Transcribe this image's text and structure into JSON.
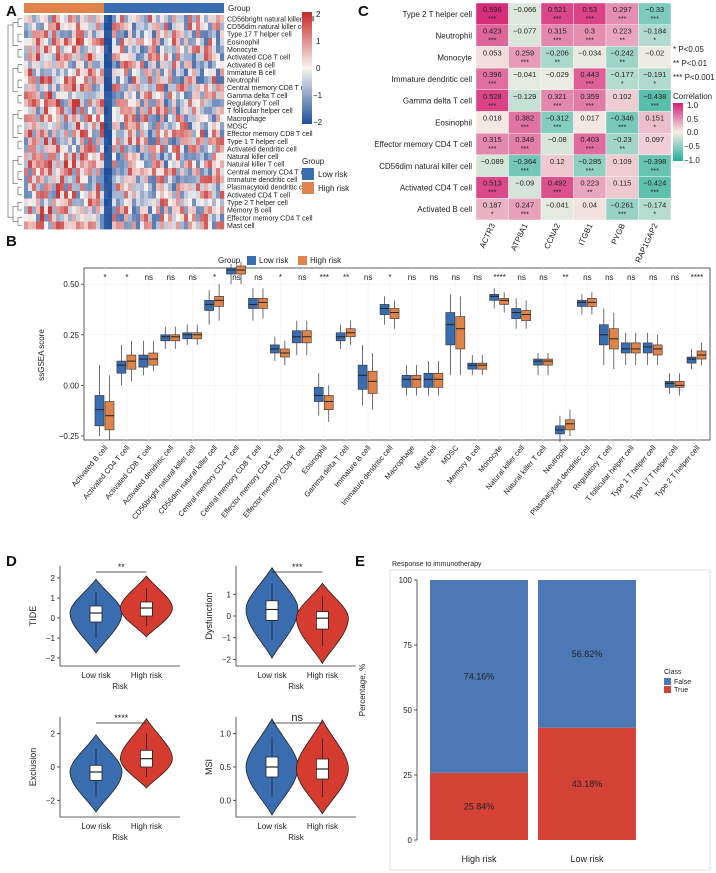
{
  "panels": {
    "A": "A",
    "B": "B",
    "C": "C",
    "D": "D",
    "E": "E"
  },
  "colors": {
    "low_risk": "#3a6cb0",
    "high_risk": "#e0834a",
    "low_risk_violin": "#3a6cb0",
    "high_risk_violin": "#d63b2f",
    "e_false": "#4c78b5",
    "e_true": "#d54236"
  },
  "chart_data": [
    {
      "panel": "A",
      "type": "heatmap",
      "track_title": "Group",
      "rows": [
        "CD56bright natural killer cell",
        "CD56dim natural killer cell",
        "Type 17 T helper cell",
        "Eosinophil",
        "Monocyte",
        "Activated CD8 T cell",
        "Activated B cell",
        "Immature B cell",
        "Neutrophil",
        "Central memory CD8 T cell",
        "Gamma delta T cell",
        "Regulatory T cell",
        "T follicular helper cell",
        "Macrophage",
        "MDSC",
        "Effector memory CD8 T cell",
        "Type 1 T helper cell",
        "Activated dendritic cell",
        "Natural killer cell",
        "Natural killer T cell",
        "Central memory CD4 T cell",
        "Immature dendritic cell",
        "Plasmacytoid dendritic cell",
        "Activated CD4 T cell",
        "Type 2 T helper cell",
        "Memory B cell",
        "Effector memory CD4 T cell",
        "Mast cell"
      ],
      "colorbar_ticks": [
        "2",
        "1",
        "0",
        "−1",
        "−2"
      ],
      "color_range": [
        -2,
        2
      ],
      "legend_title": "Group",
      "legend_items": [
        "Low risk",
        "High risk"
      ]
    },
    {
      "panel": "C",
      "type": "heatmap",
      "rows": [
        "Type 2 T helper cell",
        "Neutrophil",
        "Monocyte",
        "Immature dendritic cell",
        "Gamma delta T cell",
        "Eosinophil",
        "Effector memory CD4 T cell",
        "CD56dim natural killer cell",
        "Activated CD4 T cell",
        "Activated B cell"
      ],
      "cols": [
        "ACTR3",
        "ATP8A1",
        "CCNA2",
        "ITGB1",
        "PYGB",
        "RAP1GAP2"
      ],
      "values": [
        [
          "0.596",
          "−0.066",
          "0.521",
          "0.53",
          "0.297",
          "−0.33"
        ],
        [
          "0.423",
          "−0.077",
          "0.315",
          "0.3",
          "0.223",
          "−0.184"
        ],
        [
          "0.053",
          "0.259",
          "−0.206",
          "−0.034",
          "−0.242",
          "−0.02"
        ],
        [
          "0.396",
          "−0.041",
          "−0.029",
          "0.443",
          "−0.177",
          "−0.191"
        ],
        [
          "0.528",
          "−0.129",
          "0.321",
          "0.359",
          "0.102",
          "−0.438"
        ],
        [
          "0.018",
          "0.382",
          "−0.312",
          "0.017",
          "−0.346",
          "0.151"
        ],
        [
          "0.315",
          "0.348",
          "−0.08",
          "0.403",
          "−0.23",
          "0.097"
        ],
        [
          "−0.089",
          "−0.364",
          "0.12",
          "−0.285",
          "0.109",
          "−0.398"
        ],
        [
          "0.513",
          "−0.09",
          "0.492",
          "0.223",
          "0.115",
          "−0.424"
        ],
        [
          "0.187",
          "0.247",
          "−0.041",
          "0.04",
          "−0.261",
          "−0.174"
        ]
      ],
      "stars": [
        [
          "***",
          "",
          "***",
          "***",
          "***",
          "***"
        ],
        [
          "***",
          "",
          "***",
          "***",
          "**",
          "*"
        ],
        [
          "",
          "***",
          "**",
          "",
          "**",
          ""
        ],
        [
          "***",
          "",
          "",
          "***",
          "*",
          "*"
        ],
        [
          "***",
          "",
          "***",
          "***",
          "",
          "***"
        ],
        [
          "",
          "***",
          "***",
          "",
          "***",
          "*"
        ],
        [
          "***",
          "***",
          "",
          "***",
          "**",
          ""
        ],
        [
          "",
          "***",
          "",
          "***",
          "",
          "***"
        ],
        [
          "***",
          "",
          "***",
          "**",
          "",
          "***"
        ],
        [
          "*",
          "***",
          "",
          "",
          "***",
          "*"
        ]
      ],
      "sig_legend": [
        "* P<0.05",
        "** P<0.01",
        "*** P<0.001"
      ],
      "legend_title": "Correlation",
      "legend_ticks": [
        "1.0",
        "0.5",
        "0.0",
        "−0.5",
        "−1.0"
      ],
      "color_range": [
        -1,
        1
      ]
    },
    {
      "panel": "B",
      "type": "box",
      "legend_title": "Group",
      "legend_items": [
        "Low risk",
        "High risk"
      ],
      "ylabel": "ssGSEA score",
      "ylim": [
        -0.27,
        0.58
      ],
      "yticks": [
        "−0.25",
        "0.00",
        "0.25",
        "0.50"
      ],
      "ytick_values": [
        -0.25,
        0,
        0.25,
        0.5
      ],
      "categories": [
        "Activated B cell",
        "Activated CD4 T cell",
        "Activated CD8 T cell",
        "Activated dendritic cell",
        "CD56bright natural killer cell",
        "CD56dim natural killer cell",
        "Central memory CD4 T cell",
        "Central memory CD8 T cell",
        "Effector memory CD4 T cell",
        "Effector memory CD8 T cell",
        "Eosinophil",
        "Gamma delta T cell",
        "Immature B cell",
        "Immature dendritic cell",
        "Macrophage",
        "Mast cell",
        "MDSC",
        "Memory B cell",
        "Monocyte",
        "Natural killer cell",
        "Natural killer T cell",
        "Neutrophil",
        "Plasmacytoid dendritic cell",
        "Regulatory T cell",
        "T follicular helper cell",
        "Type 1 T helper cell",
        "Type 17 T helper cell",
        "Type 2 T helper cell"
      ],
      "significance": [
        "*",
        "*",
        "ns",
        "ns",
        "ns",
        "*",
        "ns",
        "ns",
        "*",
        "ns",
        "***",
        "**",
        "ns",
        "*",
        "ns",
        "ns",
        "ns",
        "ns",
        "****",
        "ns",
        "ns",
        "**",
        "ns",
        "ns",
        "ns",
        "ns",
        "ns",
        "****"
      ],
      "series": [
        {
          "name": "Low risk",
          "stats": [
            [
              -0.25,
              -0.2,
              -0.12,
              -0.05,
              0.1
            ],
            [
              0,
              0.06,
              0.1,
              0.12,
              0.2
            ],
            [
              0.05,
              0.09,
              0.13,
              0.15,
              0.22
            ],
            [
              0.18,
              0.22,
              0.24,
              0.25,
              0.29
            ],
            [
              0.2,
              0.23,
              0.25,
              0.26,
              0.3
            ],
            [
              0.3,
              0.37,
              0.4,
              0.42,
              0.47
            ],
            [
              0.5,
              0.55,
              0.57,
              0.58,
              0.6
            ],
            [
              0.32,
              0.38,
              0.4,
              0.43,
              0.48
            ],
            [
              0.12,
              0.16,
              0.18,
              0.2,
              0.24
            ],
            [
              0.15,
              0.21,
              0.24,
              0.27,
              0.32
            ],
            [
              -0.15,
              -0.08,
              -0.05,
              -0.01,
              0.06
            ],
            [
              0.18,
              0.22,
              0.24,
              0.26,
              0.3
            ],
            [
              -0.1,
              -0.02,
              0.05,
              0.1,
              0.2
            ],
            [
              0.3,
              0.35,
              0.38,
              0.4,
              0.44
            ],
            [
              -0.05,
              -0.01,
              0.03,
              0.05,
              0.1
            ],
            [
              -0.05,
              -0.01,
              0.03,
              0.06,
              0.12
            ],
            [
              0.05,
              0.2,
              0.3,
              0.36,
              0.45
            ],
            [
              0.05,
              0.08,
              0.1,
              0.11,
              0.15
            ],
            [
              0.38,
              0.42,
              0.44,
              0.45,
              0.48
            ],
            [
              0.28,
              0.33,
              0.36,
              0.38,
              0.43
            ],
            [
              0.05,
              0.1,
              0.12,
              0.13,
              0.16
            ],
            [
              -0.28,
              -0.24,
              -0.22,
              -0.2,
              -0.15
            ],
            [
              0.35,
              0.39,
              0.41,
              0.42,
              0.45
            ],
            [
              0.1,
              0.2,
              0.25,
              0.3,
              0.38
            ],
            [
              0.1,
              0.16,
              0.18,
              0.21,
              0.26
            ],
            [
              0.1,
              0.16,
              0.19,
              0.21,
              0.26
            ],
            [
              -0.04,
              -0.01,
              0.01,
              0.02,
              0.06
            ],
            [
              0.08,
              0.11,
              0.13,
              0.14,
              0.18
            ]
          ]
        },
        {
          "name": "High risk",
          "stats": [
            [
              -0.27,
              -0.22,
              -0.15,
              -0.08,
              0.05
            ],
            [
              0.02,
              0.08,
              0.12,
              0.15,
              0.22
            ],
            [
              0.07,
              0.1,
              0.13,
              0.16,
              0.22
            ],
            [
              0.18,
              0.22,
              0.24,
              0.25,
              0.29
            ],
            [
              0.2,
              0.23,
              0.25,
              0.26,
              0.3
            ],
            [
              0.32,
              0.39,
              0.42,
              0.44,
              0.5
            ],
            [
              0.5,
              0.55,
              0.57,
              0.59,
              0.61
            ],
            [
              0.33,
              0.38,
              0.41,
              0.43,
              0.48
            ],
            [
              0.1,
              0.14,
              0.16,
              0.18,
              0.22
            ],
            [
              0.15,
              0.21,
              0.24,
              0.27,
              0.32
            ],
            [
              -0.18,
              -0.12,
              -0.08,
              -0.05,
              0
            ],
            [
              0.2,
              0.24,
              0.26,
              0.28,
              0.32
            ],
            [
              -0.12,
              -0.04,
              0.02,
              0.07,
              0.16
            ],
            [
              0.28,
              0.33,
              0.36,
              0.38,
              0.42
            ],
            [
              -0.05,
              -0.01,
              0.03,
              0.05,
              0.1
            ],
            [
              -0.05,
              -0.01,
              0.03,
              0.06,
              0.12
            ],
            [
              0.05,
              0.18,
              0.28,
              0.34,
              0.44
            ],
            [
              0.05,
              0.08,
              0.1,
              0.11,
              0.15
            ],
            [
              0.36,
              0.4,
              0.42,
              0.43,
              0.46
            ],
            [
              0.28,
              0.32,
              0.35,
              0.37,
              0.42
            ],
            [
              0.05,
              0.1,
              0.12,
              0.13,
              0.16
            ],
            [
              -0.25,
              -0.22,
              -0.19,
              -0.17,
              -0.12
            ],
            [
              0.35,
              0.39,
              0.41,
              0.43,
              0.46
            ],
            [
              0.08,
              0.18,
              0.23,
              0.28,
              0.36
            ],
            [
              0.1,
              0.16,
              0.18,
              0.21,
              0.26
            ],
            [
              0.1,
              0.15,
              0.18,
              0.2,
              0.25
            ],
            [
              -0.05,
              -0.01,
              0,
              0.02,
              0.06
            ],
            [
              0.1,
              0.13,
              0.15,
              0.17,
              0.21
            ]
          ]
        }
      ]
    },
    {
      "panel": "D",
      "type": "violin",
      "xlabel": "Risk",
      "groups": [
        "Low risk",
        "High risk"
      ],
      "subplots": [
        {
          "ylabel": "TIDE",
          "yticks": [
            "−2",
            "−1",
            "0",
            "1",
            "2"
          ],
          "ytick_values": [
            -2,
            -1,
            0,
            1,
            2
          ],
          "ylim": [
            -2.4,
            2.6
          ],
          "sig": "**",
          "stats": [
            [
              -1,
              -0.2,
              0.25,
              0.6,
              1.3
            ],
            [
              -0.4,
              0.1,
              0.5,
              0.8,
              1.5
            ]
          ]
        },
        {
          "ylabel": "Dysfunction",
          "yticks": [
            "−2",
            "−1",
            "0",
            "1"
          ],
          "ytick_values": [
            -2,
            -1,
            0,
            1
          ],
          "ylim": [
            -2.3,
            2.3
          ],
          "sig": "***",
          "stats": [
            [
              -1.1,
              -0.2,
              0.3,
              0.7,
              1.5
            ],
            [
              -1.4,
              -0.6,
              -0.1,
              0.2,
              0.9
            ]
          ]
        },
        {
          "ylabel": "Exclusion",
          "yticks": [
            "−2",
            "0",
            "2"
          ],
          "ytick_values": [
            -2,
            0,
            2
          ],
          "ylim": [
            -3,
            3
          ],
          "sig": "****",
          "stats": [
            [
              -1.8,
              -0.8,
              -0.3,
              0.1,
              1.1
            ],
            [
              -0.6,
              0,
              0.5,
              1,
              2
            ]
          ]
        },
        {
          "ylabel": "MSI",
          "yticks": [
            "0.0",
            "0.5",
            "1.0"
          ],
          "ytick_values": [
            0,
            0.5,
            1
          ],
          "ylim": [
            -0.25,
            1.25
          ],
          "sig": "ns",
          "stats": [
            [
              0.05,
              0.35,
              0.5,
              0.65,
              0.95
            ],
            [
              0.05,
              0.32,
              0.47,
              0.62,
              0.93
            ]
          ]
        }
      ]
    },
    {
      "panel": "E",
      "type": "bar",
      "stacked": true,
      "title": "Response to immunotherapy",
      "categories": [
        "High risk",
        "Low risk"
      ],
      "ylabel": "Percentage, %",
      "ylim": [
        0,
        100
      ],
      "yticks": [
        "0",
        "25",
        "50",
        "75",
        "100"
      ],
      "ytick_values": [
        0,
        25,
        50,
        75,
        100
      ],
      "series": [
        {
          "name": "True",
          "values": [
            25.84,
            43.18
          ],
          "labels": [
            "25.84%",
            "43.18%"
          ]
        },
        {
          "name": "False",
          "values": [
            74.16,
            56.82
          ],
          "labels": [
            "74.16%",
            "56.82%"
          ]
        }
      ],
      "legend_title": "Class",
      "legend_items": [
        "False",
        "True"
      ]
    }
  ]
}
